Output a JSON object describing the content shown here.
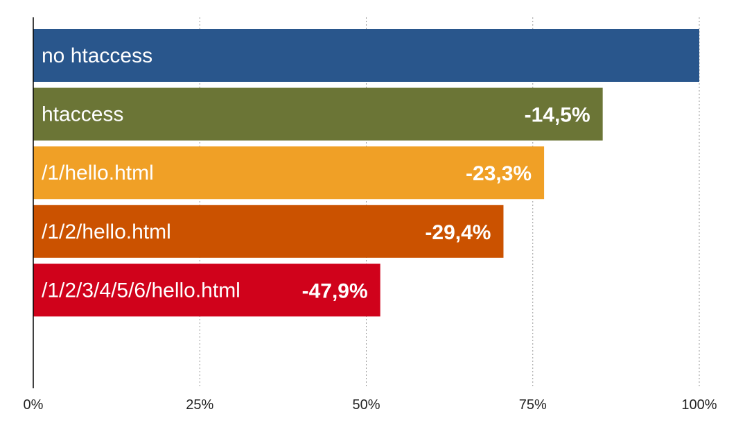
{
  "chart_data": {
    "type": "bar",
    "orientation": "horizontal",
    "categories": [
      "no htaccess",
      "htaccess",
      "/1/hello.html",
      "/1/2/hello.html",
      "/1/2/3/4/5/6/hello.html"
    ],
    "values": [
      100,
      85.5,
      76.7,
      70.6,
      52.1
    ],
    "value_labels": [
      "",
      "-14,5%",
      "-23,3%",
      "-29,4%",
      "-47,9%"
    ],
    "colors": [
      "#29568c",
      "#6b7536",
      "#f0a026",
      "#cb5200",
      "#d0021b"
    ],
    "xlim": [
      0,
      100
    ],
    "xticks": [
      0,
      25,
      50,
      75,
      100
    ],
    "xtick_labels": [
      "0%",
      "25%",
      "50%",
      "75%",
      "100%"
    ],
    "grid": true,
    "title": "",
    "xlabel": "",
    "ylabel": ""
  }
}
